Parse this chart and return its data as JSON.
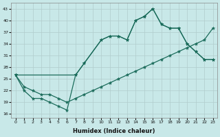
{
  "xlabel": "Humidex (Indice chaleur)",
  "bg_color": "#c8e8e8",
  "grid_color": "#b0cccc",
  "line_color": "#1a6b5a",
  "xlim": [
    -0.5,
    23.5
  ],
  "ylim": [
    15,
    44.5
  ],
  "xticks": [
    0,
    1,
    2,
    3,
    4,
    5,
    6,
    7,
    8,
    9,
    10,
    11,
    12,
    13,
    14,
    15,
    16,
    17,
    18,
    19,
    20,
    21,
    22,
    23
  ],
  "yticks": [
    16,
    19,
    22,
    25,
    28,
    31,
    34,
    37,
    40,
    43
  ],
  "series": [
    {
      "x": [
        0,
        1,
        2,
        3,
        4,
        5,
        6,
        7,
        8,
        10,
        11,
        12,
        13,
        14,
        15,
        16,
        17,
        18,
        19,
        20,
        21,
        22,
        23
      ],
      "y": [
        26,
        22,
        20,
        20,
        19,
        18,
        17,
        26,
        29,
        35,
        36,
        36,
        35,
        40,
        41,
        43,
        39,
        38,
        38,
        34,
        32,
        30,
        30
      ]
    },
    {
      "x": [
        0,
        7,
        8,
        10,
        11,
        12,
        13,
        14,
        15,
        16,
        17,
        18,
        19,
        20,
        21,
        22,
        23
      ],
      "y": [
        26,
        26,
        29,
        35,
        36,
        36,
        35,
        40,
        41,
        43,
        39,
        38,
        38,
        34,
        32,
        30,
        30
      ]
    },
    {
      "x": [
        0,
        1,
        2,
        3,
        4,
        5,
        6,
        7,
        8,
        9,
        10,
        11,
        12,
        13,
        14,
        15,
        16,
        17,
        18,
        19,
        20,
        21,
        22,
        23
      ],
      "y": [
        26,
        23,
        22,
        21,
        21,
        20,
        19,
        20,
        21,
        22,
        23,
        24,
        25,
        26,
        27,
        28,
        29,
        30,
        31,
        32,
        33,
        34,
        35,
        38
      ]
    }
  ]
}
